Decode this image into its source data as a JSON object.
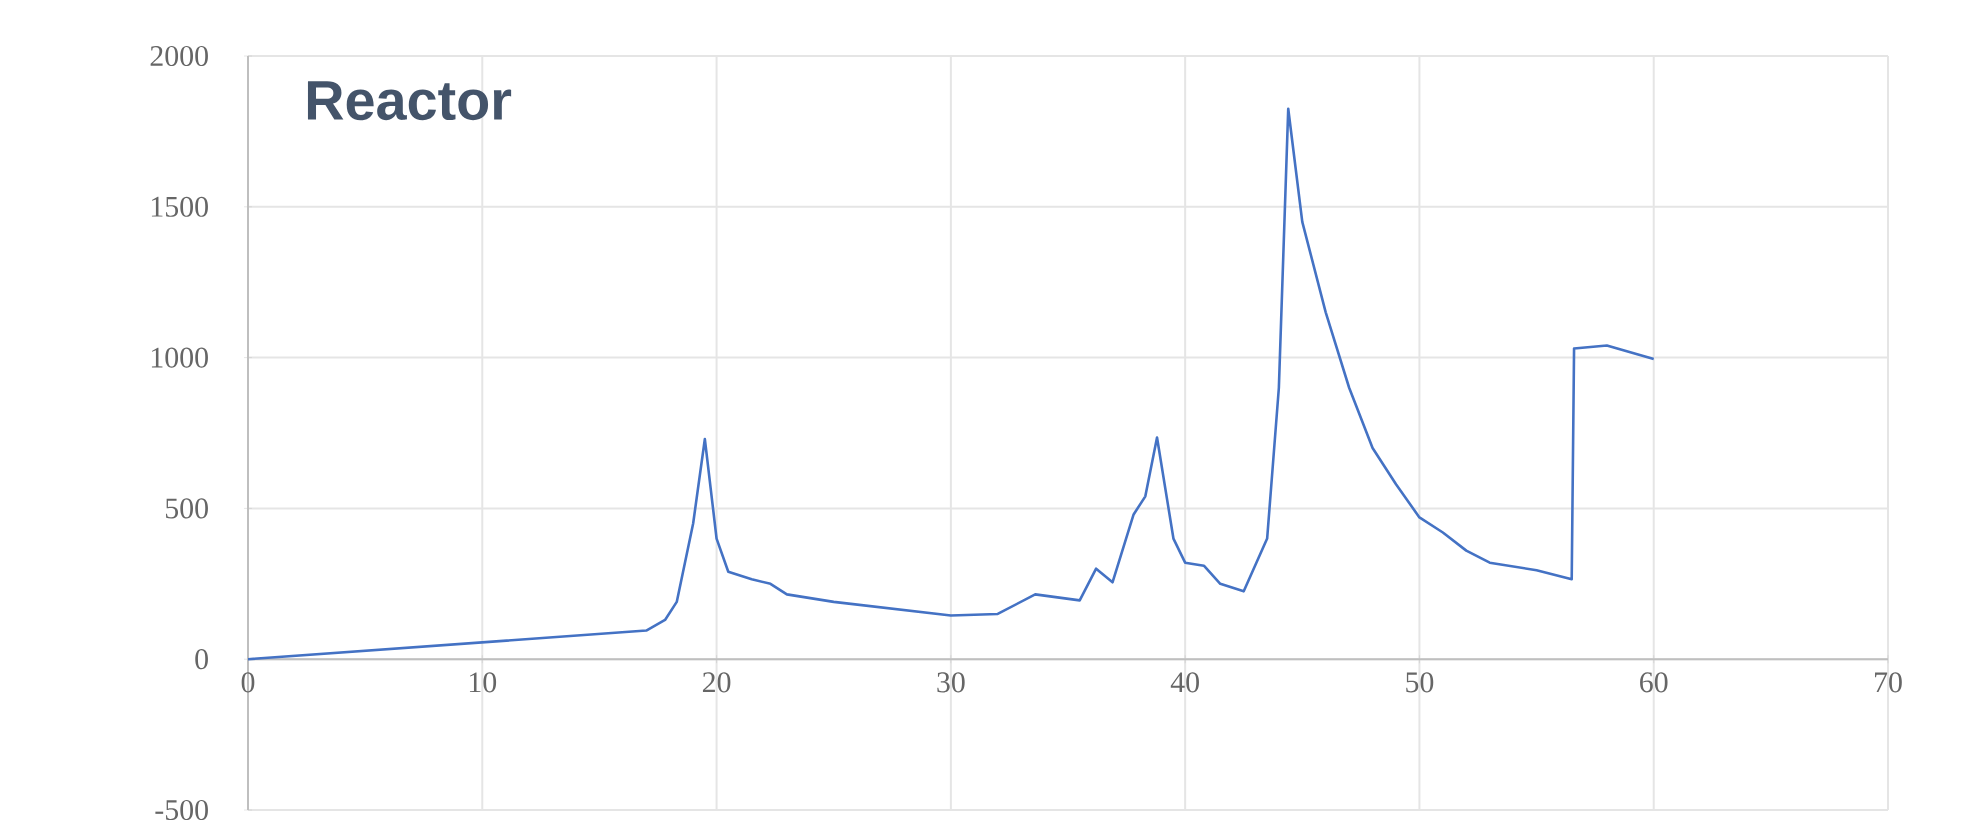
{
  "chart_data": {
    "type": "line",
    "title": "Reactor",
    "color": "#4472c4",
    "x": [
      0,
      17,
      17.8,
      18.3,
      19.0,
      19.5,
      20.0,
      20.5,
      21.5,
      22.3,
      23,
      25,
      30,
      32,
      33.6,
      35.5,
      36.2,
      36.9,
      37.8,
      38.3,
      38.8,
      39.5,
      40,
      40.8,
      41.5,
      42.5,
      43.5,
      44,
      44.4,
      45,
      46,
      47,
      48,
      49,
      50,
      51,
      52,
      53,
      55,
      56.5,
      56.6,
      58,
      60
    ],
    "values": [
      0,
      95,
      130,
      190,
      450,
      730,
      400,
      290,
      265,
      250,
      215,
      190,
      145,
      150,
      215,
      195,
      300,
      255,
      480,
      540,
      735,
      400,
      320,
      310,
      250,
      225,
      400,
      900,
      1825,
      1450,
      1150,
      900,
      700,
      580,
      470,
      420,
      360,
      320,
      295,
      265,
      1030,
      1040,
      995
    ],
    "xlim": [
      0,
      70
    ],
    "ylim": [
      -500,
      2000
    ],
    "xticks": [
      0,
      10,
      20,
      30,
      40,
      50,
      60,
      70
    ],
    "yticks": [
      -500,
      0,
      500,
      1000,
      1500,
      2000
    ],
    "grid": true,
    "line_style": "solid",
    "marker": "none"
  }
}
